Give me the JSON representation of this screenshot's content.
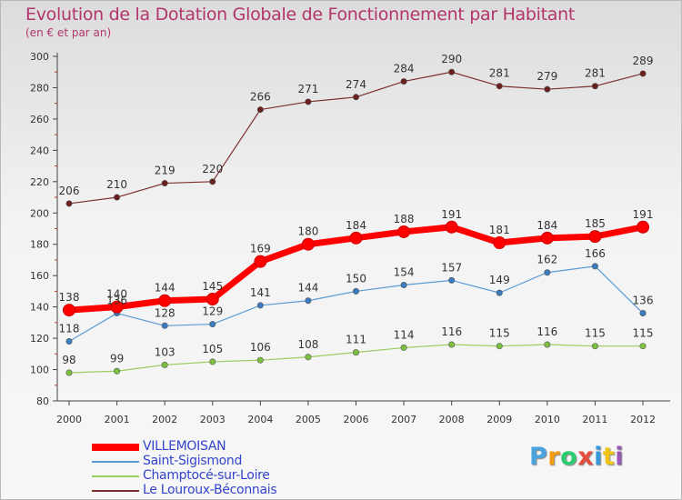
{
  "header": {
    "title": "Evolution de la Dotation Globale de Fonctionnement par Habitant",
    "subtitle": "(en € et par an)"
  },
  "colors": {
    "title": "#b2356b",
    "legend_text": "#3344cc",
    "axis": "#444444"
  },
  "chart_data": {
    "type": "line",
    "title": "Evolution de la Dotation Globale de Fonctionnement par Habitant",
    "subtitle": "(en € et par an)",
    "xlabel": "",
    "ylabel": "",
    "ylim": [
      80,
      300
    ],
    "yticks": [
      80,
      100,
      120,
      140,
      160,
      180,
      200,
      220,
      240,
      260,
      280,
      300
    ],
    "grid": false,
    "legend_position": "bottom-left",
    "categories": [
      "2000",
      "2001",
      "2002",
      "2003",
      "2004",
      "2005",
      "2006",
      "2007",
      "2008",
      "2009",
      "2010",
      "2011",
      "2012"
    ],
    "series": [
      {
        "name": "VILLEMOISAN",
        "color": "#ff0000",
        "marker": "#cc0000",
        "values": [
          138,
          140,
          144,
          145,
          169,
          180,
          184,
          188,
          191,
          181,
          184,
          185,
          191
        ]
      },
      {
        "name": "Saint-Sigismond",
        "color": "#5b9bd5",
        "marker": "#3a7cc0",
        "values": [
          118,
          136,
          128,
          129,
          141,
          144,
          150,
          154,
          157,
          149,
          162,
          166,
          136
        ]
      },
      {
        "name": "Champtocé-sur-Loire",
        "color": "#9acd60",
        "marker": "#7cc040",
        "values": [
          98,
          99,
          103,
          105,
          106,
          108,
          111,
          114,
          116,
          115,
          116,
          115,
          115
        ]
      },
      {
        "name": "Le Louroux-Béconnais",
        "color": "#7b2f2f",
        "marker": "#6b1f1f",
        "values": [
          206,
          210,
          219,
          220,
          266,
          271,
          274,
          284,
          290,
          281,
          279,
          281,
          289
        ]
      }
    ]
  },
  "logo": {
    "letters": [
      "P",
      "r",
      "o",
      "x",
      "i",
      "t",
      "i"
    ],
    "colors": [
      "#4aa3df",
      "#f39c12",
      "#2ecc71",
      "#e74c3c",
      "#3498db",
      "#f1c40f",
      "#9b59b6"
    ]
  }
}
